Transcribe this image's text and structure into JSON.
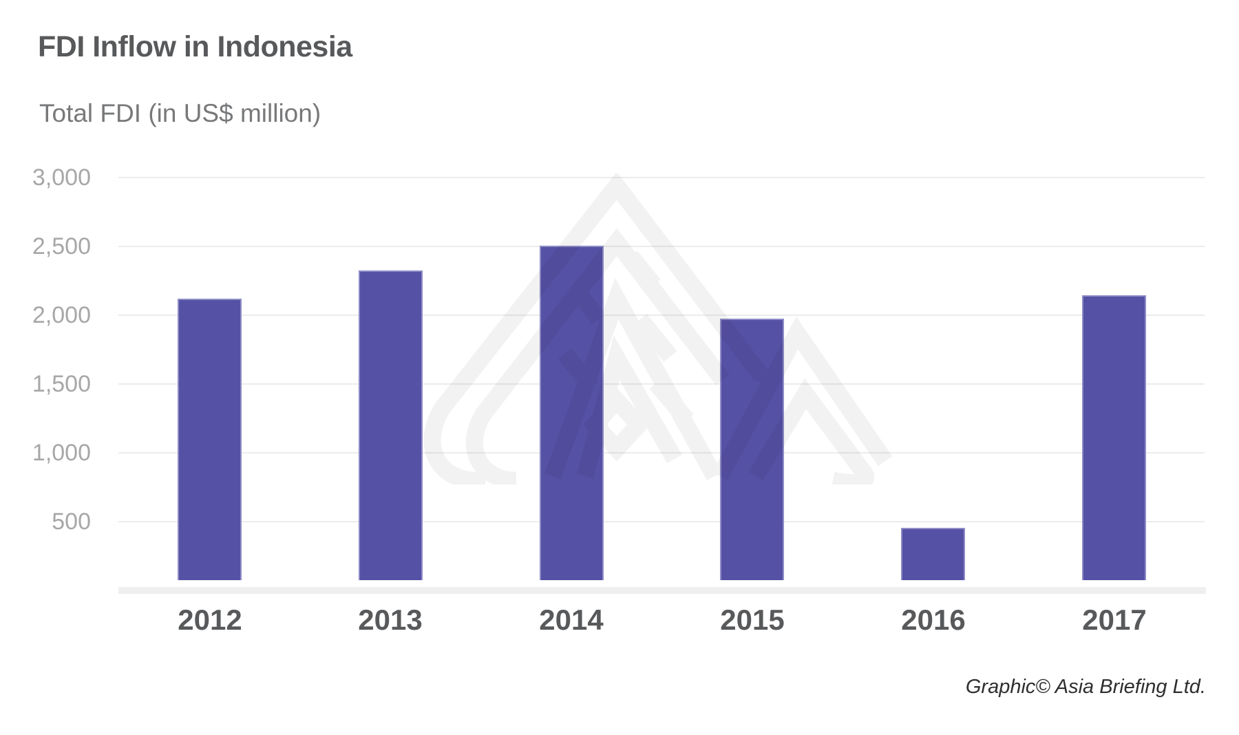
{
  "title": "FDI Inflow in Indonesia",
  "subtitle": "Total FDI (in US$ million)",
  "credit": "Graphic© Asia Briefing Ltd.",
  "icons": {
    "watermark": "asia-briefing-logo-watermark"
  },
  "colors": {
    "bar": "#5551a5",
    "bar_border": "#8f8cc7",
    "gridline": "#ececec",
    "baseline_strip": "#efefef",
    "title_text": "#58595b",
    "subtitle_text": "#77787a",
    "ytick_text": "#a7a7a7",
    "year_text": "#58595b",
    "credit_text": "#2e2e2e",
    "watermark": "#f2f2f2",
    "background": "#ffffff"
  },
  "chart_data": {
    "type": "bar",
    "title": "FDI Inflow in Indonesia",
    "ylabel": "Total FDI (in US$ million)",
    "categories": [
      "2012",
      "2013",
      "2014",
      "2015",
      "2016",
      "2017"
    ],
    "values": [
      2120,
      2325,
      2505,
      1975,
      455,
      2145
    ],
    "yticks": [
      500,
      1000,
      1500,
      2000,
      2500,
      3000
    ],
    "ytick_labels": [
      "500",
      "1,000",
      "1,500",
      "2,000",
      "2,500",
      "3,000"
    ],
    "ylim": [
      0,
      3000
    ],
    "grid": true,
    "legend": false
  }
}
